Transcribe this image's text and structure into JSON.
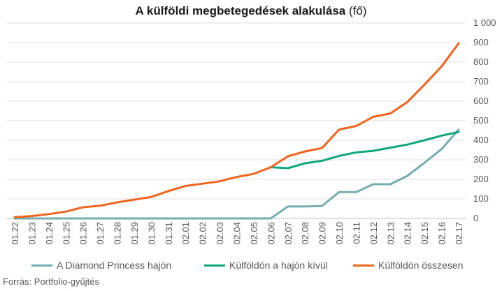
{
  "title": {
    "main": "A külföldi megbetegedések alakulása",
    "unit": "(fő)"
  },
  "source": "Forrás: Portfolio-gyűjtés",
  "colors": {
    "diamond": "#76ADB0",
    "abroad": "#12A67F",
    "total": "#F0651E",
    "grid": "#E2E2E2",
    "axis": "#BFBFBF"
  },
  "chart_data": {
    "type": "line",
    "title": "A külföldi megbetegedések alakulása (fő)",
    "xlabel": "",
    "ylabel": "",
    "ylim": [
      0,
      1000
    ],
    "yticks": [
      "0",
      "100",
      "200",
      "300",
      "400",
      "500",
      "600",
      "700",
      "800",
      "900",
      "1 000"
    ],
    "y_axis_position": "right",
    "grid": true,
    "legend": "bottom",
    "categories": [
      "01.22",
      "01.23",
      "01.24",
      "01.25",
      "01.26",
      "01.27",
      "01.28",
      "01.29",
      "01.30",
      "01.31",
      "02.01",
      "02.02",
      "02.03",
      "02.04",
      "02.05",
      "02.06",
      "02.07",
      "02.08",
      "02.09",
      "02.10",
      "02.11",
      "02.12",
      "02.13",
      "02.14",
      "02.15",
      "02.16",
      "02.17"
    ],
    "series": [
      {
        "name": "A Diamond Princess hajón",
        "color": "#76ADB0",
        "values": [
          0,
          0,
          0,
          0,
          0,
          0,
          0,
          0,
          0,
          0,
          0,
          0,
          0,
          0,
          0,
          0,
          61,
          61,
          64,
          135,
          135,
          175,
          175,
          218,
          285,
          355,
          454
        ]
      },
      {
        "name": "Külföldön a hajón kívül",
        "color": "#12A67F",
        "values": [
          null,
          null,
          null,
          null,
          null,
          null,
          null,
          null,
          null,
          null,
          null,
          null,
          null,
          null,
          null,
          262,
          257,
          282,
          295,
          320,
          338,
          346,
          362,
          378,
          400,
          424,
          442
        ]
      },
      {
        "name": "Külföldön összesen",
        "color": "#F0651E",
        "values": [
          6,
          12,
          22,
          35,
          57,
          65,
          82,
          96,
          110,
          140,
          166,
          178,
          190,
          212,
          228,
          262,
          318,
          343,
          360,
          455,
          473,
          520,
          537,
          596,
          685,
          778,
          896
        ]
      }
    ]
  }
}
